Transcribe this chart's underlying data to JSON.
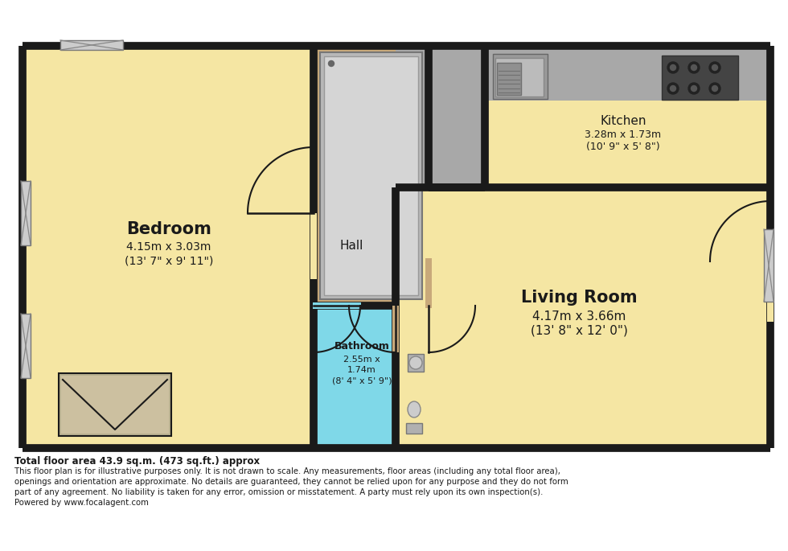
{
  "bg_color": "#ffffff",
  "wall_color": "#1a1a1a",
  "bedroom_color": "#f5e6a3",
  "living_room_color": "#f5e6a3",
  "bathroom_color": "#7fd8e8",
  "hall_color": "#c8a97a",
  "fixture_gray": "#a8a8a8",
  "fixture_light": "#d0d0d0",
  "disclaimer_line1": "Total floor area 43.9 sq.m. (473 sq.ft.) approx",
  "disclaimer_line2": "This floor plan is for illustrative purposes only. It is not drawn to scale. Any measurements, floor areas (including any total floor area),",
  "disclaimer_line3": "openings and orientation are approximate. No details are guaranteed, they cannot be relied upon for any purpose and they do not form",
  "disclaimer_line4": "part of any agreement. No liability is taken for any error, omission or misstatement. A party must rely upon its own inspection(s).",
  "disclaimer_line5": "Powered by www.focalagent.com",
  "bedroom_label": "Bedroom",
  "bedroom_dim1": "4.15m x 3.03m",
  "bedroom_dim2": "(13' 7\" x 9' 11\")",
  "bathroom_label": "Bathroom",
  "bathroom_dim1": "2.55m x",
  "bathroom_dim2": "1.74m",
  "bathroom_dim3": "(8' 4\" x 5' 9\")",
  "kitchen_label": "Kitchen",
  "kitchen_dim1": "3.28m x 1.73m",
  "kitchen_dim2": "(10' 9\" x 5' 8\")",
  "hall_label": "Hall",
  "living_label": "Living Room",
  "living_dim1": "4.17m x 3.66m",
  "living_dim2": "(13' 8\" x 12' 0\")"
}
